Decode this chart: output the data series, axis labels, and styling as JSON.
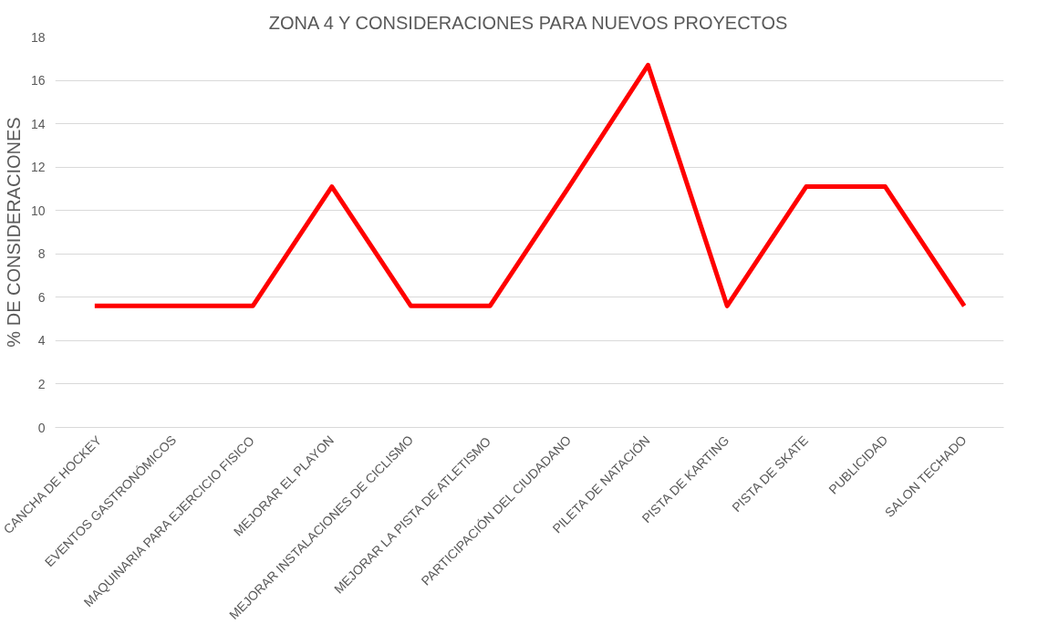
{
  "chart_data": {
    "type": "line",
    "title": "ZONA 4 Y CONSIDERACIONES PARA NUEVOS PROYECTOS",
    "ylabel": "% DE CONSIDERACIONES",
    "categories": [
      "CANCHA DE HOCKEY",
      "EVENTOS GASTRONÓMICOS",
      "MAQUINARIA PARA EJERCICIO FISICO",
      "MEJORAR EL PLAYON",
      "MEJORAR INSTALACIONES DE CICLISMO",
      "MEJORAR LA PISTA DE ATLETISMO",
      "PARTICIPACIÓN DEL CIUDADANO",
      "PILETA DE NATACIÓN",
      "PISTA DE KARTING",
      "PISTA DE SKATE",
      "PUBLICIDAD",
      "SALON TECHADO"
    ],
    "series": [
      {
        "color": "#ff0000",
        "values": [
          5.6,
          5.6,
          5.6,
          11.1,
          5.6,
          5.6,
          11.1,
          16.7,
          5.6,
          11.1,
          11.1,
          5.6
        ]
      }
    ],
    "ylim": [
      0,
      18
    ],
    "yticks": [
      0,
      2,
      4,
      6,
      8,
      10,
      12,
      14,
      16,
      18
    ],
    "grid": "y",
    "marker": "none",
    "line_style": "solid"
  }
}
